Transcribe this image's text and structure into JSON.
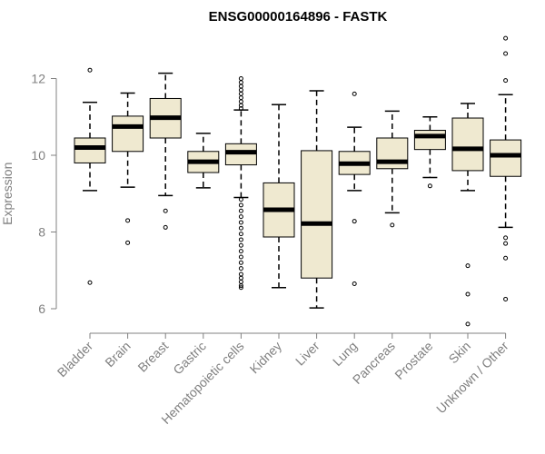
{
  "chart_data": {
    "type": "box",
    "title": "ENSG00000164896 - FASTK",
    "xlabel": "",
    "ylabel": "Expression",
    "ylim": [
      5.5,
      13.1
    ],
    "yticks": [
      6,
      8,
      10,
      12
    ],
    "grid": false,
    "box_fill": "#efe9d0",
    "categories": [
      "Bladder",
      "Brain",
      "Breast",
      "Gastric",
      "Hematopoietic cells",
      "Kidney",
      "Liver",
      "Lung",
      "Pancreas",
      "Prostate",
      "Skin",
      "Unknown / Other"
    ],
    "boxes": [
      {
        "q1": 9.8,
        "median": 10.2,
        "q3": 10.45,
        "lower": 9.08,
        "upper": 11.38,
        "outliers": [
          12.22,
          6.68
        ]
      },
      {
        "q1": 10.1,
        "median": 10.75,
        "q3": 11.02,
        "lower": 9.17,
        "upper": 11.62,
        "outliers": [
          8.3,
          7.72
        ]
      },
      {
        "q1": 10.45,
        "median": 10.98,
        "q3": 11.48,
        "lower": 8.95,
        "upper": 12.14,
        "outliers": [
          8.55,
          8.12
        ]
      },
      {
        "q1": 9.55,
        "median": 9.83,
        "q3": 10.1,
        "lower": 9.15,
        "upper": 10.57,
        "outliers": []
      },
      {
        "q1": 9.75,
        "median": 10.08,
        "q3": 10.3,
        "lower": 8.9,
        "upper": 11.18,
        "outliers": [
          12.0,
          11.9,
          11.8,
          11.7,
          11.6,
          11.5,
          11.4,
          11.3,
          11.22,
          8.85,
          8.7,
          8.55,
          8.4,
          8.25,
          8.1,
          7.95,
          7.8,
          7.65,
          7.5,
          7.35,
          7.2,
          7.05,
          6.9,
          6.8,
          6.7,
          6.6,
          6.55
        ]
      },
      {
        "q1": 7.87,
        "median": 8.58,
        "q3": 9.28,
        "lower": 6.55,
        "upper": 11.32,
        "outliers": []
      },
      {
        "q1": 6.8,
        "median": 8.22,
        "q3": 10.12,
        "lower": 6.02,
        "upper": 11.68,
        "outliers": []
      },
      {
        "q1": 9.5,
        "median": 9.78,
        "q3": 10.1,
        "lower": 9.08,
        "upper": 10.73,
        "outliers": [
          11.6,
          8.28,
          6.65
        ]
      },
      {
        "q1": 9.65,
        "median": 9.83,
        "q3": 10.45,
        "lower": 8.5,
        "upper": 11.15,
        "outliers": [
          8.18
        ]
      },
      {
        "q1": 10.15,
        "median": 10.5,
        "q3": 10.65,
        "lower": 9.42,
        "upper": 11.0,
        "outliers": [
          9.2
        ]
      },
      {
        "q1": 9.6,
        "median": 10.17,
        "q3": 10.97,
        "lower": 9.08,
        "upper": 11.35,
        "outliers": [
          7.12,
          6.38,
          5.6
        ]
      },
      {
        "q1": 9.45,
        "median": 10.0,
        "q3": 10.4,
        "lower": 8.12,
        "upper": 11.58,
        "outliers": [
          13.05,
          12.65,
          11.95,
          7.85,
          7.7,
          7.32,
          6.25
        ]
      }
    ]
  }
}
